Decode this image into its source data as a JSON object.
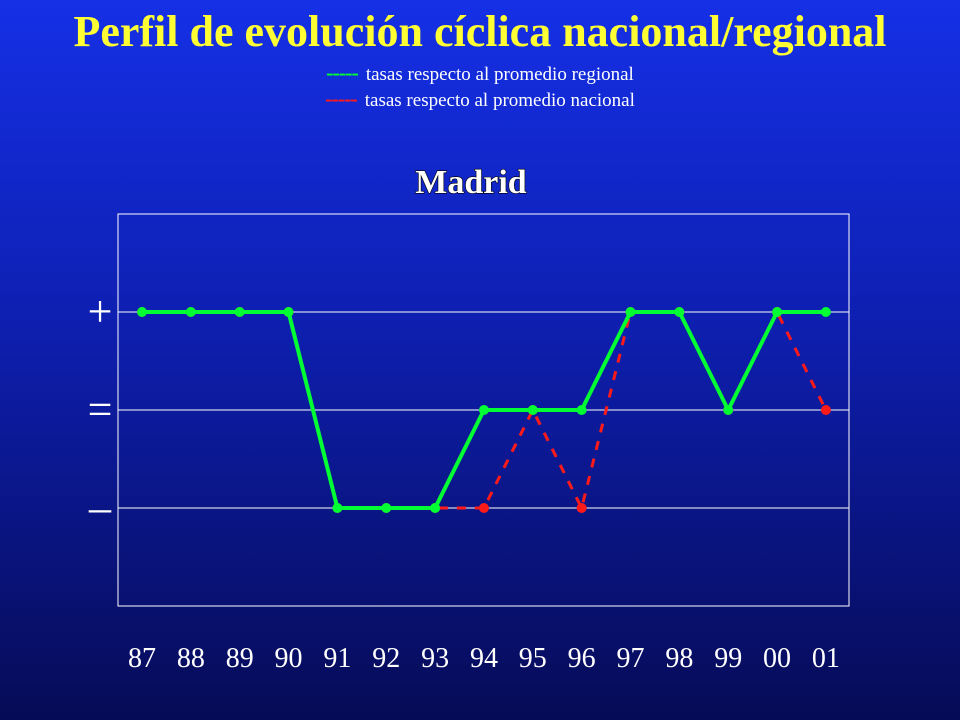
{
  "header": {
    "title": "Perfil de evolución cíclica nacional/regional",
    "title_color": "#ffff33"
  },
  "legend": [
    {
      "swatch": "-----",
      "label": "tasas respecto al promedio regional",
      "color": "#00ff33"
    },
    {
      "swatch": "-----",
      "label": "tasas respecto al promedio nacional",
      "color": "#ff1a1a"
    }
  ],
  "chart_data": {
    "type": "line",
    "title": "Madrid",
    "categories": [
      "87",
      "88",
      "89",
      "90",
      "91",
      "92",
      "93",
      "94",
      "95",
      "96",
      "97",
      "98",
      "99",
      "00",
      "01"
    ],
    "y_levels": [
      {
        "label": "+",
        "value": 1
      },
      {
        "label": "=",
        "value": 0
      },
      {
        "label": "–",
        "value": -1
      }
    ],
    "ylim": [
      -2,
      2
    ],
    "grid": true,
    "series": [
      {
        "name": "tasas respecto al promedio nacional",
        "color": "#ff1a1a",
        "style": "dashed",
        "values": [
          1,
          1,
          1,
          1,
          -1,
          -1,
          -1,
          -1,
          0,
          -1,
          1,
          1,
          0,
          1,
          0
        ]
      },
      {
        "name": "tasas respecto al promedio regional",
        "color": "#00ff33",
        "style": "solid",
        "values": [
          1,
          1,
          1,
          1,
          -1,
          -1,
          -1,
          0,
          0,
          0,
          1,
          1,
          0,
          1,
          1
        ]
      }
    ]
  }
}
